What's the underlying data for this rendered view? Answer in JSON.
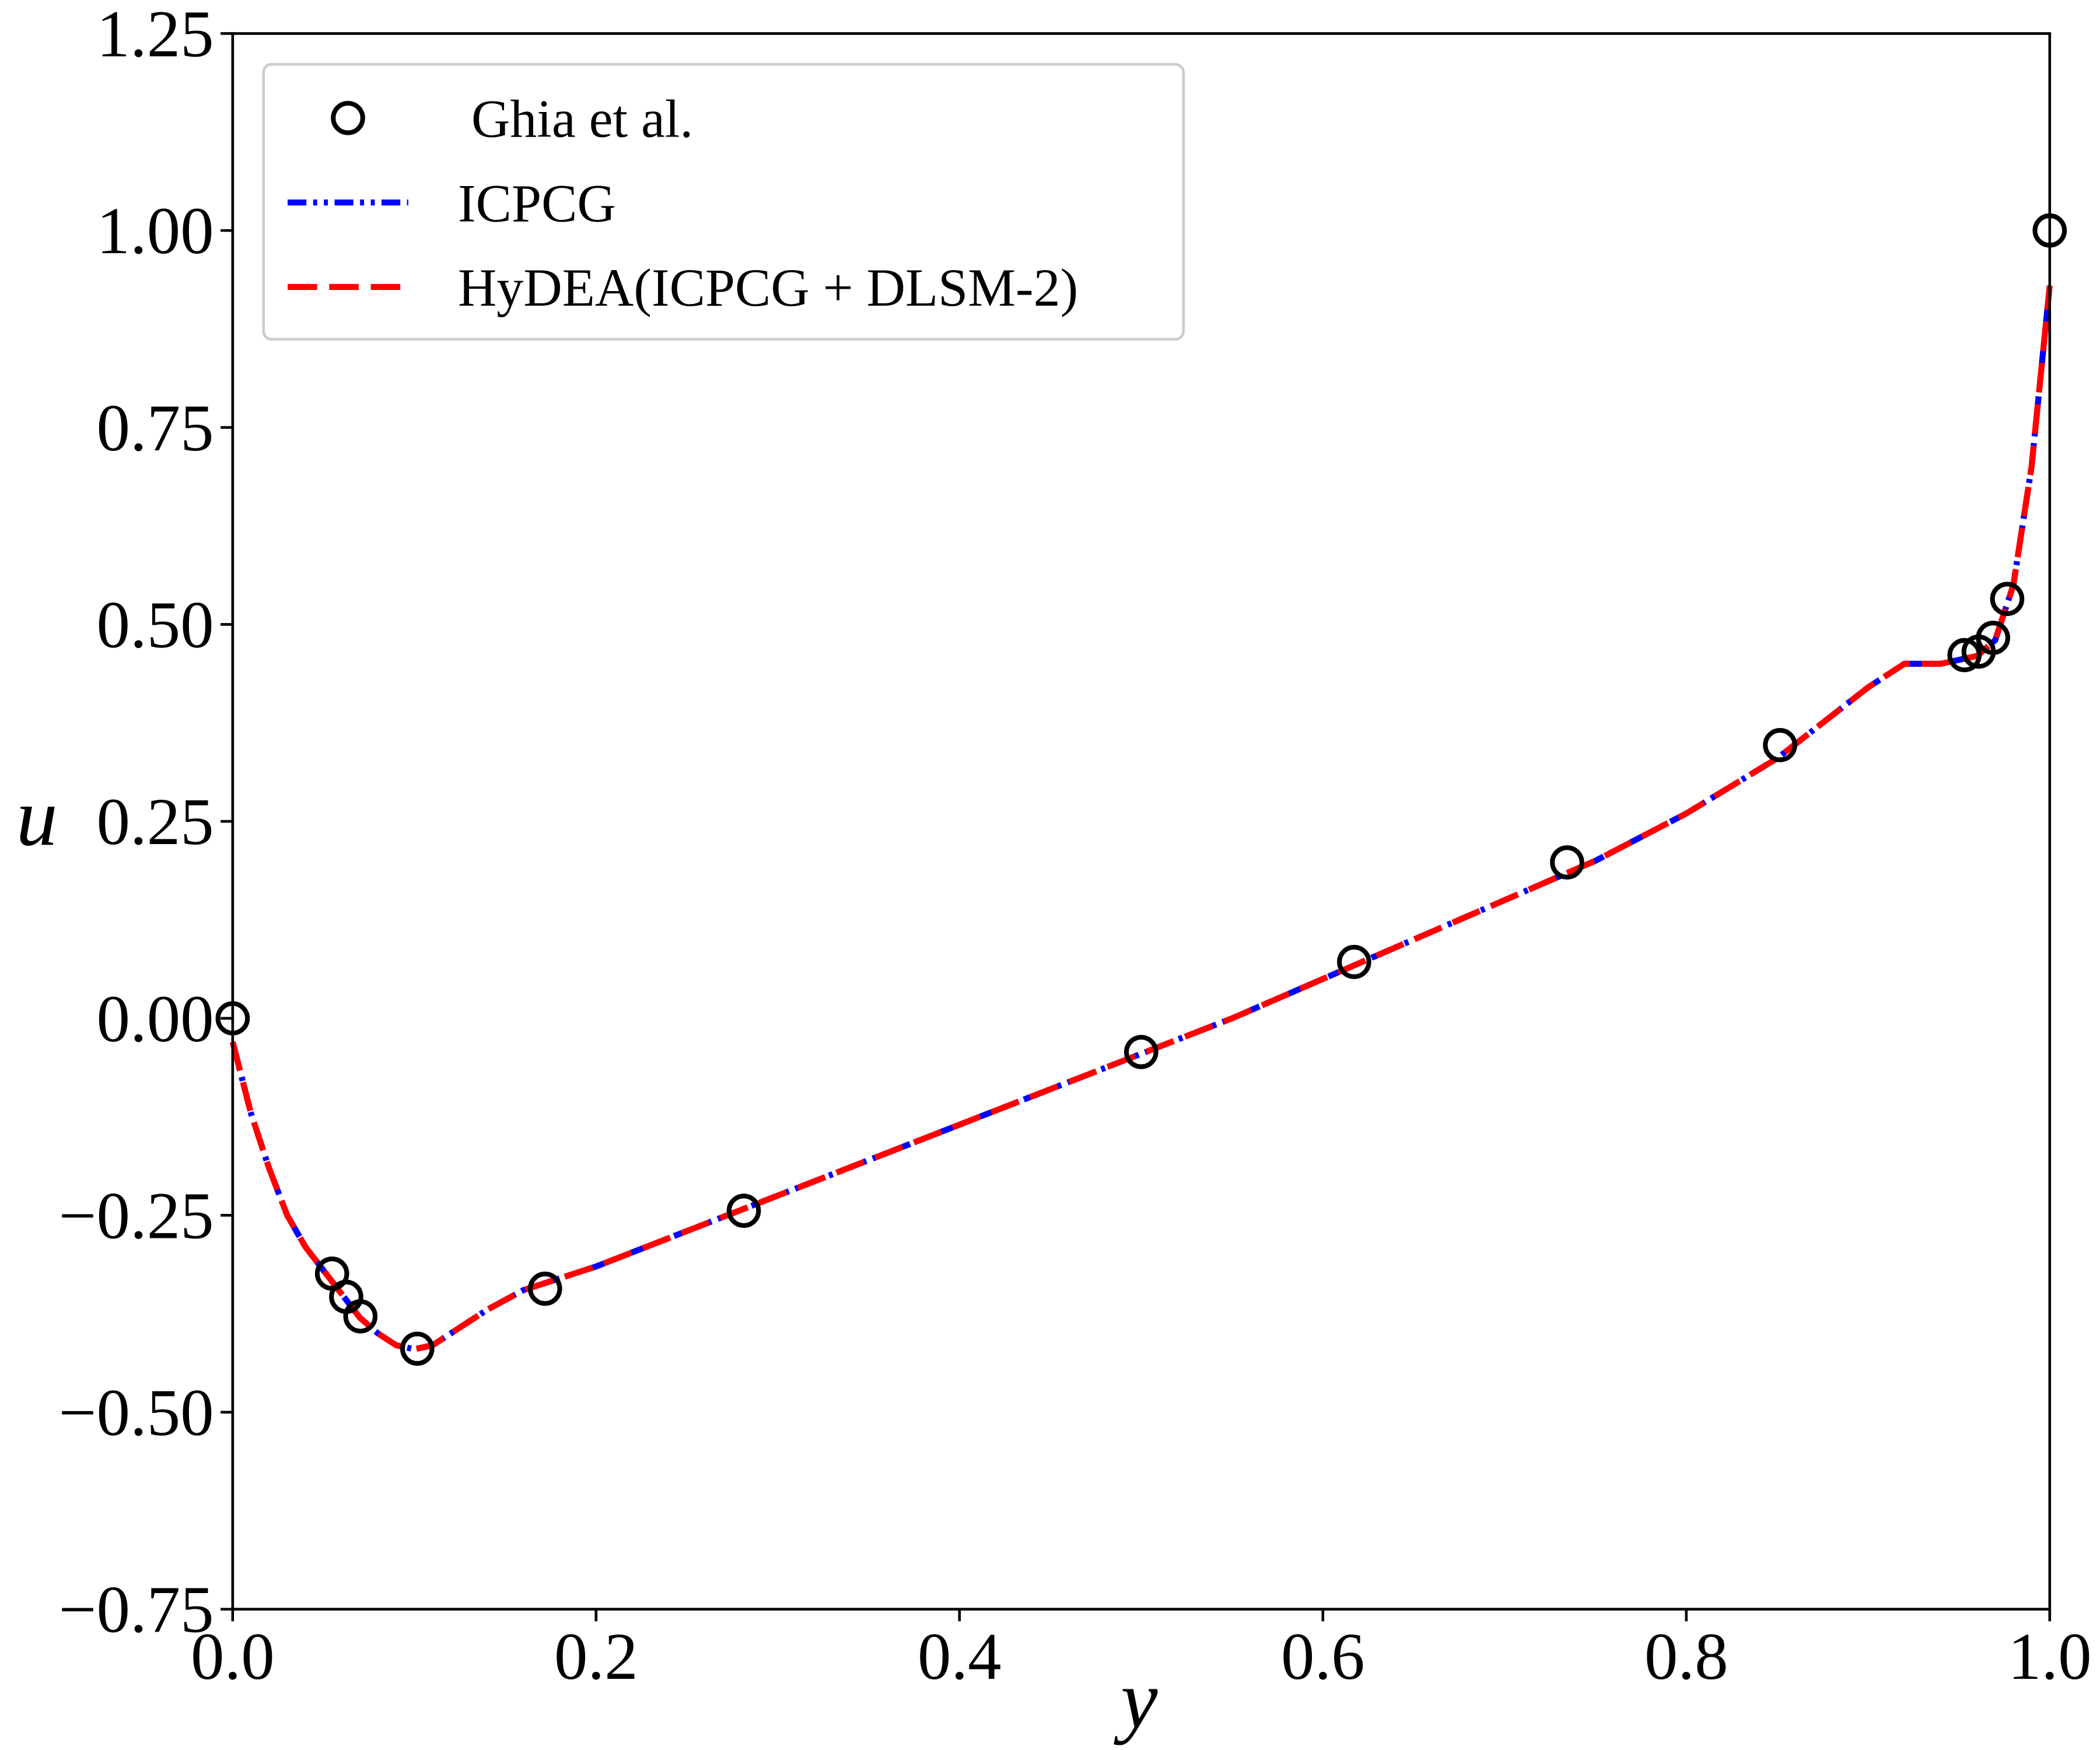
{
  "chart_data": {
    "type": "line",
    "xlabel": "y",
    "ylabel": "u",
    "xlim": [
      0,
      1
    ],
    "ylim": [
      -0.75,
      1.25
    ],
    "xticks": [
      {
        "value": 0,
        "label": "0.0"
      },
      {
        "value": 0.2,
        "label": "0.2"
      },
      {
        "value": 0.4,
        "label": "0.4"
      },
      {
        "value": 0.6,
        "label": "0.6"
      },
      {
        "value": 0.8,
        "label": "0.8"
      },
      {
        "value": 1,
        "label": "1.0"
      }
    ],
    "yticks": [
      {
        "value": -0.75,
        "label": "−0.75"
      },
      {
        "value": -0.5,
        "label": "−0.50"
      },
      {
        "value": -0.25,
        "label": "−0.25"
      },
      {
        "value": 0,
        "label": "0.00"
      },
      0.25,
      {
        "value": 0.5,
        "label": "0.50"
      },
      0.75,
      {
        "value": 1,
        "label": "1.00"
      },
      1.25
    ],
    "legend": "upper left",
    "x": [
      0,
      0.01,
      0.02,
      0.03,
      0.04,
      0.05,
      0.06,
      0.07,
      0.08,
      0.09,
      0.1,
      0.11,
      0.12,
      0.14,
      0.16,
      0.18,
      0.2,
      0.25,
      0.3,
      0.35,
      0.4,
      0.45,
      0.5,
      0.55,
      0.6,
      0.65,
      0.7,
      0.75,
      0.8,
      0.85,
      0.9,
      0.92,
      0.94,
      0.95,
      0.96,
      0.97,
      0.98,
      0.99,
      1
    ],
    "series": [
      {
        "name": "Ghia et al.",
        "type": "scatter",
        "color": "#000000",
        "x": [
          0,
          0.0547,
          0.0625,
          0.0703,
          0.1016,
          0.1719,
          0.2813,
          0.5,
          0.6172,
          0.7344,
          0.8516,
          0.9531,
          0.9609,
          0.9688,
          0.9766,
          1
        ],
        "values": [
          0,
          -0.32407,
          -0.35344,
          -0.37827,
          -0.41933,
          -0.34323,
          -0.24427,
          -0.04272,
          0.07156,
          0.19791,
          0.34682,
          0.46101,
          0.46547,
          0.48296,
          0.53236,
          1
        ]
      },
      {
        "name": "ICPCG",
        "type": "line",
        "style": "dashdotdot",
        "color": "#0000ff",
        "values": [
          -0.03,
          -0.12,
          -0.19,
          -0.25,
          -0.29,
          -0.32,
          -0.35,
          -0.38,
          -0.4,
          -0.415,
          -0.42,
          -0.415,
          -0.4,
          -0.37,
          -0.345,
          -0.33,
          -0.315,
          -0.27,
          -0.225,
          -0.18,
          -0.135,
          -0.09,
          -0.045,
          0,
          0.05,
          0.1,
          0.15,
          0.2,
          0.26,
          0.33,
          0.42,
          0.45,
          0.45,
          0.455,
          0.46,
          0.48,
          0.55,
          0.7,
          0.93
        ]
      },
      {
        "name": "HyDEA(ICPCG + DLSM-2)",
        "type": "line",
        "style": "dashed",
        "color": "#ff0000",
        "values": [
          -0.03,
          -0.12,
          -0.19,
          -0.25,
          -0.29,
          -0.32,
          -0.35,
          -0.38,
          -0.4,
          -0.415,
          -0.42,
          -0.415,
          -0.4,
          -0.37,
          -0.345,
          -0.33,
          -0.315,
          -0.27,
          -0.225,
          -0.18,
          -0.135,
          -0.09,
          -0.045,
          0,
          0.05,
          0.1,
          0.15,
          0.2,
          0.26,
          0.33,
          0.42,
          0.45,
          0.45,
          0.455,
          0.46,
          0.48,
          0.55,
          0.7,
          0.93
        ]
      }
    ]
  }
}
